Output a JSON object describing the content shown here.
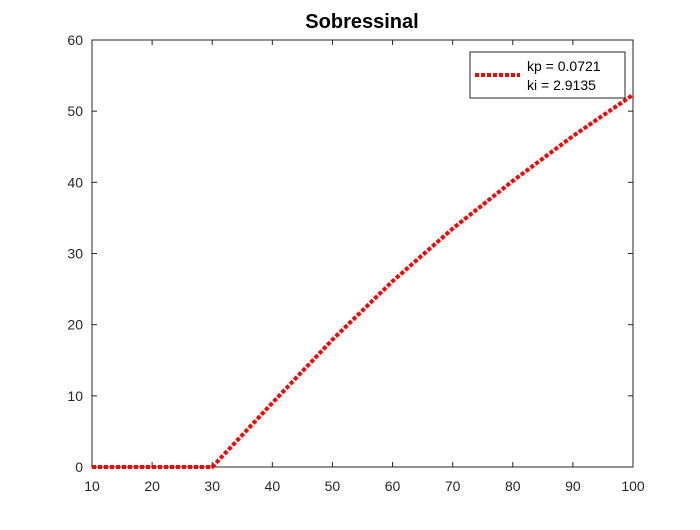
{
  "chart_data": {
    "type": "line",
    "title": "Sobressinal",
    "xlabel": "",
    "ylabel": "",
    "xlim": [
      10,
      100
    ],
    "ylim": [
      0,
      60
    ],
    "xticks": [
      10,
      20,
      30,
      40,
      50,
      60,
      70,
      80,
      90,
      100
    ],
    "yticks": [
      0,
      10,
      20,
      30,
      40,
      50,
      60
    ],
    "grid": false,
    "legend_position": "top-right",
    "series": [
      {
        "legend_lines": [
          "kp = 0.0721",
          "ki = 2.9135"
        ],
        "color": "#ff0000",
        "line_style": "dotted",
        "x": [
          10,
          20,
          30,
          40,
          50,
          60,
          70,
          80,
          90,
          100
        ],
        "y": [
          0,
          0,
          0,
          9,
          17.9,
          26.1,
          33.5,
          40.2,
          46.5,
          52.3
        ]
      }
    ]
  }
}
